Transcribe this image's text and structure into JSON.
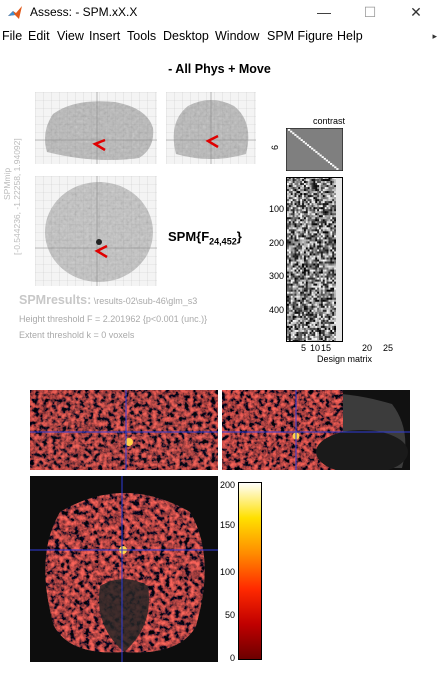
{
  "window": {
    "title": "Assess:  - SPM.xX.X",
    "minimize_glyph": "—",
    "maximize_glyph": "☐",
    "close_glyph": "✕",
    "icon": "matlab-logo-icon"
  },
  "menu": {
    "items": [
      "File",
      "Edit",
      "View",
      "Insert",
      "Tools",
      "Desktop",
      "Window",
      "SPM Figure",
      "Help"
    ],
    "overflow_glyph": "▸"
  },
  "figure": {
    "title": "- All Phys + Move",
    "spm_stat_prefix": "SPM{F",
    "spm_stat_df": "24,452",
    "spm_stat_suffix": "}",
    "side_label_1": "SPMmip",
    "side_label_2": "[-0.544236, -1.22258, 1.94092]"
  },
  "results": {
    "header": "SPMresults:",
    "path": "\\results-02\\sub-46\\glm_s3",
    "height_threshold": "Height threshold F = 2.201962  {p<0.001 (unc.)}",
    "extent_threshold": "Extent threshold k = 0 voxels"
  },
  "design_matrix": {
    "contrast_title": "contrast",
    "contrast_tick": "6",
    "y_ticks": [
      "100",
      "200",
      "300",
      "400"
    ],
    "x_ticks": [
      "5",
      "10",
      "15",
      "20",
      "25"
    ],
    "xlabel": "Design matrix"
  },
  "colorbar": {
    "ticks": [
      "200",
      "150",
      "100",
      "50",
      "0"
    ],
    "colors": [
      "#6b0000",
      "#c00000",
      "#ff2a00",
      "#ff8c00",
      "#ffe000",
      "#ffffff"
    ]
  }
}
